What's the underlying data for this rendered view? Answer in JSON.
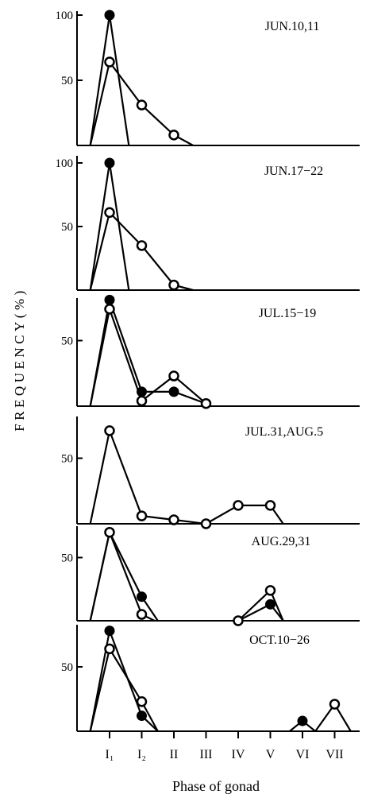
{
  "figure": {
    "ylabel": "FREQUENCY(%)",
    "xlabel": "Phase of gonad",
    "x_categories": [
      "I₁",
      "I₂",
      "II",
      "III",
      "IV",
      "V",
      "VI",
      "VII"
    ]
  },
  "chart_data": [
    {
      "type": "line",
      "title": "JUN.10,11",
      "xlabel": "Phase of gonad",
      "ylabel": "FREQUENCY(%)",
      "categories": [
        "I₁",
        "I₂",
        "II",
        "III",
        "IV",
        "V",
        "VI",
        "VII"
      ],
      "ylim": [
        0,
        100
      ],
      "yticks": [
        100,
        50
      ],
      "series": [
        {
          "marker": "filled",
          "x": [
            -0.6,
            0,
            0.6
          ],
          "y": [
            0,
            100,
            0
          ]
        },
        {
          "marker": "open",
          "x": [
            -0.6,
            0,
            1,
            2,
            2.6
          ],
          "y": [
            0,
            64,
            31,
            8,
            0
          ]
        }
      ]
    },
    {
      "type": "line",
      "title": "JUN.17−22",
      "xlabel": "Phase of gonad",
      "ylabel": "FREQUENCY(%)",
      "categories": [
        "I₁",
        "I₂",
        "II",
        "III",
        "IV",
        "V",
        "VI",
        "VII"
      ],
      "ylim": [
        0,
        100
      ],
      "yticks": [
        100,
        50
      ],
      "series": [
        {
          "marker": "filled",
          "x": [
            -0.6,
            0,
            0.6
          ],
          "y": [
            0,
            100,
            0
          ]
        },
        {
          "marker": "open",
          "x": [
            -0.6,
            0,
            1,
            2,
            2.6
          ],
          "y": [
            0,
            61,
            35,
            4,
            0
          ]
        }
      ]
    },
    {
      "type": "line",
      "title": "JUL.15−19",
      "xlabel": "Phase of gonad",
      "ylabel": "FREQUENCY(%)",
      "categories": [
        "I₁",
        "I₂",
        "II",
        "III",
        "IV",
        "V",
        "VI",
        "VII"
      ],
      "ylim": [
        0,
        100
      ],
      "yticks": [
        50
      ],
      "series": [
        {
          "marker": "filled",
          "x": [
            -0.6,
            0,
            1,
            2,
            3
          ],
          "y": [
            0,
            81,
            11,
            11,
            2
          ]
        },
        {
          "marker": "open",
          "x": [
            -0.6,
            0,
            1,
            2,
            3
          ],
          "y": [
            0,
            74,
            4,
            23,
            2
          ]
        }
      ]
    },
    {
      "type": "line",
      "title": "JUL.31,AUG.5",
      "xlabel": "Phase of gonad",
      "ylabel": "FREQUENCY(%)",
      "categories": [
        "I₁",
        "I₂",
        "II",
        "III",
        "IV",
        "V",
        "VI",
        "VII"
      ],
      "ylim": [
        0,
        100
      ],
      "yticks": [
        50
      ],
      "series": [
        {
          "marker": "open",
          "x": [
            -0.6,
            0,
            1,
            2,
            3,
            4,
            5,
            5.4
          ],
          "y": [
            0,
            71,
            6,
            3,
            0,
            14,
            14,
            0
          ]
        }
      ]
    },
    {
      "type": "line",
      "title": "AUG.29,31",
      "xlabel": "Phase of gonad",
      "ylabel": "FREQUENCY(%)",
      "categories": [
        "I₁",
        "I₂",
        "II",
        "III",
        "IV",
        "V",
        "VI",
        "VII"
      ],
      "ylim": [
        0,
        100
      ],
      "yticks": [
        50
      ],
      "series": [
        {
          "marker": "filled",
          "x": [
            -0.6,
            0,
            1,
            1.5
          ],
          "y": [
            0,
            70,
            19,
            0
          ]
        },
        {
          "marker": "open",
          "x": [
            -0.6,
            0,
            1,
            1.4
          ],
          "y": [
            0,
            70,
            5,
            0
          ]
        },
        {
          "marker": "filled",
          "x": [
            4,
            5,
            5.4
          ],
          "y": [
            0,
            13,
            0
          ]
        },
        {
          "marker": "open",
          "x": [
            4,
            5,
            5.4
          ],
          "y": [
            0,
            24,
            0
          ]
        }
      ]
    },
    {
      "type": "line",
      "title": "OCT.10−26",
      "xlabel": "Phase of gonad",
      "ylabel": "FREQUENCY(%)",
      "categories": [
        "I₁",
        "I₂",
        "II",
        "III",
        "IV",
        "V",
        "VI",
        "VII"
      ],
      "ylim": [
        0,
        100
      ],
      "yticks": [
        50
      ],
      "series": [
        {
          "marker": "filled",
          "x": [
            -0.6,
            0,
            1,
            1.5
          ],
          "y": [
            0,
            78,
            12,
            0
          ]
        },
        {
          "marker": "open",
          "x": [
            -0.6,
            0,
            1,
            1.5
          ],
          "y": [
            0,
            64,
            23,
            0
          ]
        },
        {
          "marker": "filled",
          "x": [
            5.6,
            6,
            6.4
          ],
          "y": [
            0,
            8,
            0
          ]
        },
        {
          "marker": "open",
          "x": [
            6.4,
            7,
            7.5
          ],
          "y": [
            0,
            21,
            0
          ]
        }
      ]
    }
  ]
}
